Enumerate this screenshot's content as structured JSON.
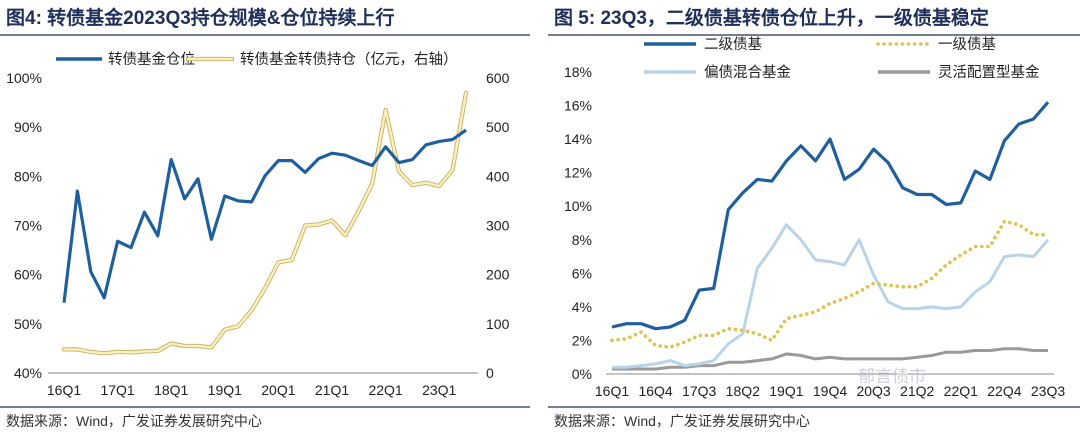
{
  "left": {
    "title": "图4:  转债基金2023Q3持仓规模&仓位持续上行",
    "source": "数据来源：Wind，广发证券发展研究中心",
    "chart_data": {
      "type": "line",
      "categories": [
        "16Q1",
        "16Q2",
        "16Q3",
        "16Q4",
        "17Q1",
        "17Q2",
        "17Q3",
        "17Q4",
        "18Q1",
        "18Q2",
        "18Q3",
        "18Q4",
        "19Q1",
        "19Q2",
        "19Q3",
        "19Q4",
        "20Q1",
        "20Q2",
        "20Q3",
        "20Q4",
        "21Q1",
        "21Q2",
        "21Q3",
        "21Q4",
        "22Q1",
        "22Q2",
        "22Q3",
        "22Q4",
        "23Q1",
        "23Q2",
        "23Q3"
      ],
      "tick_labels": [
        "16Q1",
        "17Q1",
        "18Q1",
        "19Q1",
        "20Q1",
        "21Q1",
        "22Q1",
        "23Q1"
      ],
      "y_left": {
        "ticks": [
          "40%",
          "50%",
          "60%",
          "70%",
          "80%",
          "90%",
          "100%"
        ],
        "ylim": [
          40,
          100
        ]
      },
      "y_right": {
        "ticks": [
          "0",
          "100",
          "200",
          "300",
          "400",
          "500",
          "600"
        ],
        "ylim": [
          0,
          600
        ]
      },
      "legend": "top",
      "series": [
        {
          "name": "转债基金仓位",
          "axis": "left",
          "color": "#1f5f9e",
          "values": [
            54.3,
            77.0,
            60.6,
            55.3,
            66.8,
            65.5,
            72.7,
            67.9,
            83.4,
            75.4,
            79.5,
            67.2,
            76.0,
            75.0,
            74.8,
            80.1,
            83.2,
            83.2,
            80.8,
            83.6,
            84.7,
            84.3,
            83.2,
            82.2,
            86.0,
            82.8,
            83.4,
            86.4,
            87.1,
            87.5,
            89.4
          ]
        },
        {
          "name": "转债基金转债持仓（亿元，右轴）",
          "axis": "right",
          "color": "#f2dc8a",
          "values": [
            48,
            48,
            43,
            40,
            43,
            42,
            44,
            45,
            60,
            55,
            55,
            52,
            88,
            95,
            128,
            172,
            225,
            230,
            300,
            302,
            310,
            280,
            330,
            385,
            535,
            410,
            382,
            387,
            380,
            413,
            570
          ]
        }
      ]
    }
  },
  "right": {
    "title": "图 5:  23Q3，二级债基转债仓位上升，一级债基稳定",
    "source": "数据来源：Wind，广发证券发展研究中心",
    "watermark": "郁言债市",
    "chart_data": {
      "type": "line",
      "tick_labels": [
        "16Q1",
        "16Q4",
        "17Q3",
        "18Q2",
        "19Q1",
        "19Q4",
        "20Q3",
        "21Q2",
        "22Q1",
        "22Q4",
        "23Q3"
      ],
      "y": {
        "ticks": [
          "0%",
          "2%",
          "4%",
          "6%",
          "8%",
          "10%",
          "12%",
          "14%",
          "16%",
          "18%"
        ],
        "ylim": [
          0,
          18
        ]
      },
      "legend": "top",
      "series": [
        {
          "name": "二级债基",
          "color": "#1f5f9e",
          "dash": false,
          "values": [
            2.8,
            3.0,
            3.0,
            2.7,
            2.8,
            3.2,
            5.0,
            5.1,
            9.8,
            10.8,
            11.6,
            11.5,
            12.7,
            13.6,
            12.7,
            14.0,
            11.6,
            12.2,
            13.4,
            12.6,
            11.1,
            10.7,
            10.7,
            10.1,
            10.2,
            12.1,
            11.6,
            13.9,
            14.9,
            15.2,
            16.2
          ]
        },
        {
          "name": "一级债基",
          "color": "#e4c04c",
          "dash": true,
          "values": [
            2.0,
            2.1,
            2.5,
            1.7,
            1.6,
            1.9,
            2.3,
            2.3,
            2.7,
            2.6,
            2.4,
            2.0,
            3.3,
            3.5,
            3.7,
            4.2,
            4.5,
            4.9,
            5.4,
            5.3,
            5.2,
            5.2,
            5.7,
            6.5,
            7.1,
            7.6,
            7.6,
            9.1,
            8.9,
            8.3,
            8.3
          ]
        },
        {
          "name": "偏债混合基金",
          "color": "#b8d4ea",
          "dash": false,
          "values": [
            0.4,
            0.4,
            0.5,
            0.6,
            0.8,
            0.5,
            0.6,
            0.8,
            1.8,
            2.4,
            6.3,
            7.5,
            8.9,
            8.0,
            6.8,
            6.7,
            6.5,
            8.0,
            5.9,
            4.3,
            3.9,
            3.9,
            4.0,
            3.9,
            4.0,
            4.9,
            5.5,
            7.0,
            7.1,
            7.0,
            8.0
          ]
        },
        {
          "name": "灵活配置型基金",
          "color": "#9a9a9a",
          "dash": false,
          "values": [
            0.3,
            0.3,
            0.3,
            0.3,
            0.4,
            0.4,
            0.5,
            0.5,
            0.7,
            0.7,
            0.8,
            0.9,
            1.2,
            1.1,
            0.9,
            1.0,
            0.9,
            0.9,
            0.9,
            0.9,
            0.9,
            1.0,
            1.1,
            1.3,
            1.3,
            1.4,
            1.4,
            1.5,
            1.5,
            1.4,
            1.4
          ]
        }
      ]
    }
  }
}
